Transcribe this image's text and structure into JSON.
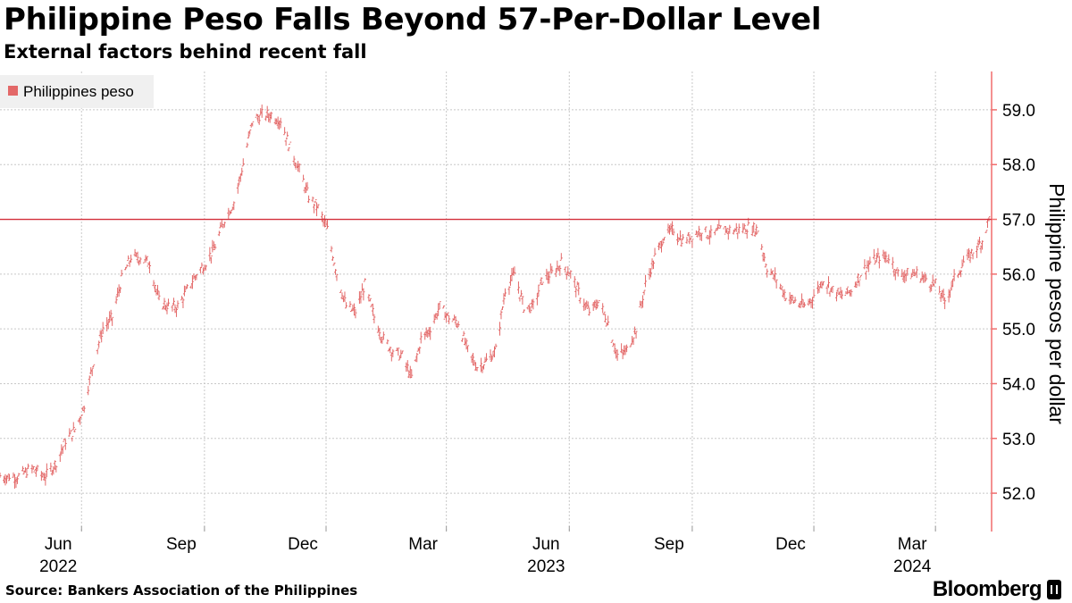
{
  "header": {
    "title": "Philippine Peso Falls Beyond 57-Per-Dollar Level",
    "subtitle": "External factors behind recent fall"
  },
  "footer": {
    "source": "Source: Bankers Association of the Philippines",
    "brand": "Bloomberg"
  },
  "colors": {
    "series": "#e36868",
    "axis": "#f06d6d",
    "grid": "#c8c8c8",
    "reference_line": "#d32f3a"
  },
  "chart_data": {
    "type": "line",
    "style": "ohlc-bars",
    "legend": {
      "position": "top-left",
      "entries": [
        "Philippines peso"
      ]
    },
    "ylabel": "Philippine pesos per dollar",
    "y_axis_side": "right",
    "ylim": [
      51.3,
      59.7
    ],
    "y_ticks": [
      52.0,
      53.0,
      54.0,
      55.0,
      56.0,
      57.0,
      58.0,
      59.0
    ],
    "y_tick_labels": [
      "52.0",
      "53.0",
      "54.0",
      "55.0",
      "56.0",
      "57.0",
      "58.0",
      "59.0"
    ],
    "xlim": [
      "2022-04-01",
      "2024-04-12"
    ],
    "x_ticks": [
      {
        "label": "Jun",
        "date": "2022-06-01",
        "year_label": "2022"
      },
      {
        "label": "Sep",
        "date": "2022-09-01"
      },
      {
        "label": "Dec",
        "date": "2022-12-01"
      },
      {
        "label": "Mar",
        "date": "2023-03-01"
      },
      {
        "label": "Jun",
        "date": "2023-06-01",
        "year_label": "2023"
      },
      {
        "label": "Sep",
        "date": "2023-09-01"
      },
      {
        "label": "Dec",
        "date": "2023-12-01"
      },
      {
        "label": "Mar",
        "date": "2024-03-01",
        "year_label": "2024"
      }
    ],
    "grid": true,
    "reference_line": {
      "y": 57.0
    },
    "series": [
      {
        "name": "Philippines peso",
        "points": [
          [
            "2022-04-01",
            52.3
          ],
          [
            "2022-04-15",
            52.3
          ],
          [
            "2022-04-25",
            52.45
          ],
          [
            "2022-05-05",
            52.3
          ],
          [
            "2022-05-13",
            52.55
          ],
          [
            "2022-05-20",
            52.95
          ],
          [
            "2022-05-27",
            53.15
          ],
          [
            "2022-06-03",
            53.6
          ],
          [
            "2022-06-10",
            54.4
          ],
          [
            "2022-06-17",
            55.0
          ],
          [
            "2022-06-24",
            55.2
          ],
          [
            "2022-07-01",
            55.9
          ],
          [
            "2022-07-08",
            56.3
          ],
          [
            "2022-07-15",
            56.3
          ],
          [
            "2022-07-22",
            56.2
          ],
          [
            "2022-07-29",
            55.5
          ],
          [
            "2022-08-05",
            55.4
          ],
          [
            "2022-08-12",
            55.4
          ],
          [
            "2022-08-19",
            55.7
          ],
          [
            "2022-08-26",
            56.0
          ],
          [
            "2022-09-02",
            56.2
          ],
          [
            "2022-09-09",
            56.5
          ],
          [
            "2022-09-16",
            57.0
          ],
          [
            "2022-09-23",
            57.3
          ],
          [
            "2022-09-30",
            58.0
          ],
          [
            "2022-10-07",
            58.8
          ],
          [
            "2022-10-14",
            58.9
          ],
          [
            "2022-10-21",
            58.9
          ],
          [
            "2022-10-28",
            58.8
          ],
          [
            "2022-11-04",
            58.3
          ],
          [
            "2022-11-11",
            57.9
          ],
          [
            "2022-11-18",
            57.4
          ],
          [
            "2022-11-25",
            57.2
          ],
          [
            "2022-12-02",
            56.8
          ],
          [
            "2022-12-09",
            56.0
          ],
          [
            "2022-12-16",
            55.4
          ],
          [
            "2022-12-23",
            55.3
          ],
          [
            "2022-12-30",
            55.8
          ],
          [
            "2023-01-06",
            55.2
          ],
          [
            "2023-01-13",
            54.8
          ],
          [
            "2023-01-20",
            54.6
          ],
          [
            "2023-01-27",
            54.5
          ],
          [
            "2023-02-03",
            54.1
          ],
          [
            "2023-02-10",
            54.8
          ],
          [
            "2023-02-17",
            55.0
          ],
          [
            "2023-02-24",
            55.4
          ],
          [
            "2023-03-03",
            55.2
          ],
          [
            "2023-03-10",
            55.1
          ],
          [
            "2023-03-17",
            54.6
          ],
          [
            "2023-03-24",
            54.3
          ],
          [
            "2023-03-31",
            54.4
          ],
          [
            "2023-04-07",
            54.6
          ],
          [
            "2023-04-14",
            55.7
          ],
          [
            "2023-04-21",
            56.0
          ],
          [
            "2023-04-28",
            55.4
          ],
          [
            "2023-05-05",
            55.4
          ],
          [
            "2023-05-12",
            55.9
          ],
          [
            "2023-05-19",
            56.0
          ],
          [
            "2023-05-26",
            56.2
          ],
          [
            "2023-06-02",
            56.0
          ],
          [
            "2023-06-09",
            55.6
          ],
          [
            "2023-06-16",
            55.3
          ],
          [
            "2023-06-23",
            55.5
          ],
          [
            "2023-06-30",
            55.1
          ],
          [
            "2023-07-07",
            54.5
          ],
          [
            "2023-07-14",
            54.6
          ],
          [
            "2023-07-21",
            55.0
          ],
          [
            "2023-07-28",
            55.8
          ],
          [
            "2023-08-04",
            56.3
          ],
          [
            "2023-08-11",
            56.7
          ],
          [
            "2023-08-18",
            56.8
          ],
          [
            "2023-08-25",
            56.6
          ],
          [
            "2023-09-01",
            56.7
          ],
          [
            "2023-09-08",
            56.8
          ],
          [
            "2023-09-15",
            56.7
          ],
          [
            "2023-09-22",
            56.8
          ],
          [
            "2023-09-29",
            56.8
          ],
          [
            "2023-10-06",
            56.8
          ],
          [
            "2023-10-13",
            56.85
          ],
          [
            "2023-10-20",
            56.8
          ],
          [
            "2023-10-27",
            56.1
          ],
          [
            "2023-11-03",
            55.9
          ],
          [
            "2023-11-10",
            55.6
          ],
          [
            "2023-11-17",
            55.5
          ],
          [
            "2023-11-24",
            55.4
          ],
          [
            "2023-12-01",
            55.6
          ],
          [
            "2023-12-08",
            55.9
          ],
          [
            "2023-12-15",
            55.7
          ],
          [
            "2023-12-22",
            55.6
          ],
          [
            "2023-12-29",
            55.7
          ],
          [
            "2024-01-05",
            56.0
          ],
          [
            "2024-01-12",
            56.2
          ],
          [
            "2024-01-19",
            56.3
          ],
          [
            "2024-01-26",
            56.3
          ],
          [
            "2024-02-02",
            56.0
          ],
          [
            "2024-02-09",
            56.0
          ],
          [
            "2024-02-16",
            56.0
          ],
          [
            "2024-02-23",
            55.9
          ],
          [
            "2024-03-01",
            55.8
          ],
          [
            "2024-03-08",
            55.5
          ],
          [
            "2024-03-15",
            55.9
          ],
          [
            "2024-03-22",
            56.2
          ],
          [
            "2024-03-29",
            56.4
          ],
          [
            "2024-04-05",
            56.6
          ],
          [
            "2024-04-10",
            57.0
          ]
        ]
      }
    ]
  }
}
